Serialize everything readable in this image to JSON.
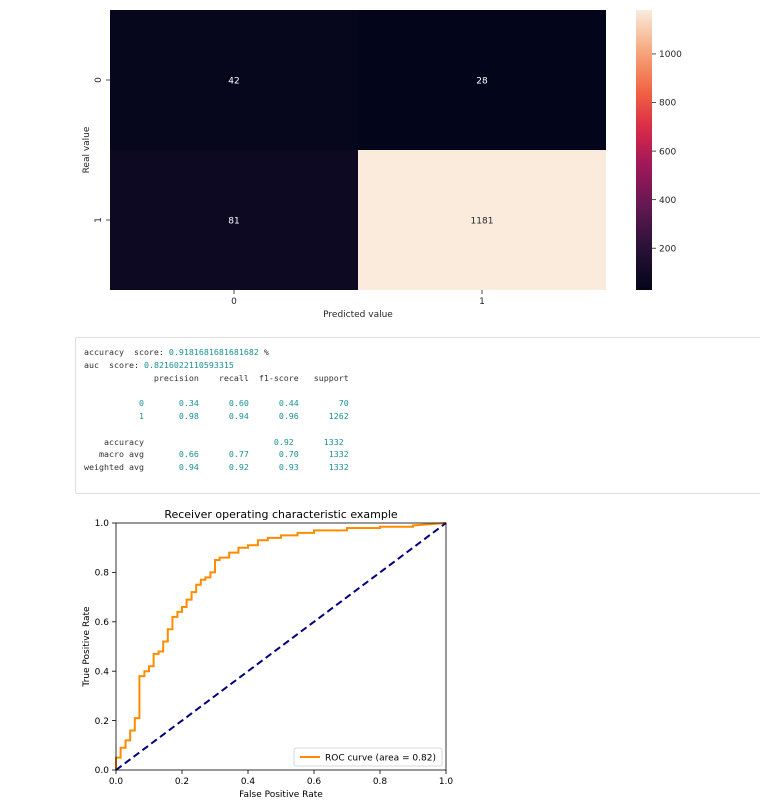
{
  "chart_data": [
    {
      "type": "heatmap",
      "xlabel": "Predicted value",
      "ylabel": "Real value",
      "x_ticks": [
        "0",
        "1"
      ],
      "y_ticks": [
        "0",
        "1"
      ],
      "values": [
        [
          42,
          28
        ],
        [
          81,
          1181
        ]
      ],
      "colorbar_ticks": [
        200,
        400,
        600,
        800,
        1000
      ],
      "colorbar_range": [
        28,
        1181
      ],
      "colormap": "rocket"
    },
    {
      "type": "line",
      "title": "Receiver operating characteristic example",
      "xlabel": "False Positive Rate",
      "ylabel": "True Positive Rate",
      "xlim": [
        0.0,
        1.0
      ],
      "ylim": [
        0.0,
        1.0
      ],
      "x_ticks": [
        "0.0",
        "0.2",
        "0.4",
        "0.6",
        "0.8",
        "1.0"
      ],
      "y_ticks": [
        "0.0",
        "0.2",
        "0.4",
        "0.6",
        "0.8",
        "1.0"
      ],
      "legend": "lower-right",
      "series": [
        {
          "name": "ROC curve (area = 0.82)",
          "color": "#ff8c00",
          "style": "solid",
          "x": [
            0.0,
            0.0,
            0.014,
            0.014,
            0.029,
            0.029,
            0.043,
            0.043,
            0.057,
            0.057,
            0.071,
            0.071,
            0.086,
            0.086,
            0.1,
            0.1,
            0.114,
            0.114,
            0.129,
            0.129,
            0.143,
            0.143,
            0.157,
            0.157,
            0.171,
            0.171,
            0.186,
            0.186,
            0.2,
            0.2,
            0.214,
            0.214,
            0.229,
            0.229,
            0.243,
            0.243,
            0.257,
            0.257,
            0.271,
            0.271,
            0.286,
            0.286,
            0.3,
            0.3,
            0.314,
            0.314,
            0.343,
            0.343,
            0.371,
            0.371,
            0.4,
            0.4,
            0.43,
            0.43,
            0.46,
            0.46,
            0.5,
            0.5,
            0.55,
            0.55,
            0.6,
            0.6,
            0.7,
            0.7,
            0.8,
            0.8,
            0.9,
            0.9,
            1.0
          ],
          "y": [
            0.0,
            0.05,
            0.05,
            0.09,
            0.09,
            0.12,
            0.12,
            0.16,
            0.16,
            0.21,
            0.21,
            0.38,
            0.38,
            0.4,
            0.4,
            0.42,
            0.42,
            0.47,
            0.47,
            0.48,
            0.48,
            0.52,
            0.52,
            0.57,
            0.57,
            0.62,
            0.62,
            0.64,
            0.64,
            0.66,
            0.66,
            0.69,
            0.69,
            0.72,
            0.72,
            0.75,
            0.75,
            0.77,
            0.77,
            0.78,
            0.78,
            0.8,
            0.8,
            0.85,
            0.85,
            0.86,
            0.86,
            0.88,
            0.88,
            0.9,
            0.9,
            0.91,
            0.91,
            0.93,
            0.93,
            0.94,
            0.94,
            0.95,
            0.95,
            0.96,
            0.96,
            0.97,
            0.97,
            0.98,
            0.98,
            0.985,
            0.985,
            0.99,
            1.0
          ]
        },
        {
          "name": "",
          "color": "#000080",
          "style": "dashed",
          "x": [
            0.0,
            1.0
          ],
          "y": [
            0.0,
            1.0
          ]
        }
      ]
    }
  ],
  "report": {
    "accuracy_label": "accuracy  score: ",
    "accuracy_value": "0.9181681681681682",
    "accuracy_suffix": " %",
    "auc_label": "auc  score: ",
    "auc_value": "0.8216022110593315",
    "header": "              precision    recall  f1-score   support",
    "rows": [
      {
        "label": "           0",
        "cells": "       0.34      0.60      0.44        70"
      },
      {
        "label": "           1",
        "cells": "       0.98      0.94      0.96      1262"
      },
      {
        "label": "    accuracy",
        "cells": "                          0.92      1332"
      },
      {
        "label": "   macro avg",
        "cells": "       0.66      0.77      0.70      1332"
      },
      {
        "label": "weighted avg",
        "cells": "       0.94      0.92      0.93      1332"
      }
    ]
  }
}
